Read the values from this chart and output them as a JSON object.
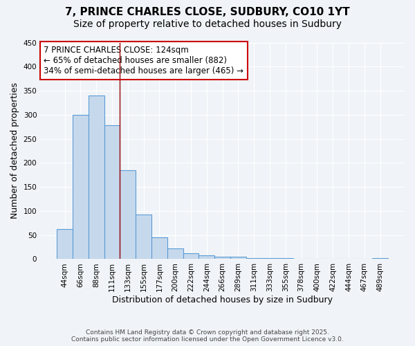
{
  "title1": "7, PRINCE CHARLES CLOSE, SUDBURY, CO10 1YT",
  "title2": "Size of property relative to detached houses in Sudbury",
  "xlabel": "Distribution of detached houses by size in Sudbury",
  "ylabel": "Number of detached properties",
  "footnote1": "Contains HM Land Registry data © Crown copyright and database right 2025.",
  "footnote2": "Contains public sector information licensed under the Open Government Licence v3.0.",
  "bin_labels": [
    "44sqm",
    "66sqm",
    "88sqm",
    "111sqm",
    "133sqm",
    "155sqm",
    "177sqm",
    "200sqm",
    "222sqm",
    "244sqm",
    "266sqm",
    "289sqm",
    "311sqm",
    "333sqm",
    "355sqm",
    "378sqm",
    "400sqm",
    "422sqm",
    "444sqm",
    "467sqm",
    "489sqm"
  ],
  "bar_heights": [
    62,
    300,
    340,
    278,
    185,
    93,
    45,
    22,
    12,
    8,
    5,
    5,
    2,
    2,
    2,
    1,
    0,
    0,
    0,
    0,
    2
  ],
  "bar_color": "#c6d9ec",
  "bar_edge_color": "#5b9bd5",
  "property_line_x": 3.5,
  "annotation_text1": "7 PRINCE CHARLES CLOSE: 124sqm",
  "annotation_text2": "← 65% of detached houses are smaller (882)",
  "annotation_text3": "34% of semi-detached houses are larger (465) →",
  "annotation_box_facecolor": "#ffffff",
  "annotation_box_edgecolor": "#cc0000",
  "ylim": [
    0,
    450
  ],
  "yticks": [
    0,
    50,
    100,
    150,
    200,
    250,
    300,
    350,
    400,
    450
  ],
  "background_color": "#f0f4f8",
  "plot_background": "#f0f4f8",
  "grid_color": "#ffffff",
  "title1_fontsize": 11,
  "title2_fontsize": 10,
  "axis_label_fontsize": 9,
  "tick_fontsize": 7.5,
  "annotation_fontsize": 8.5,
  "footnote_fontsize": 6.5
}
